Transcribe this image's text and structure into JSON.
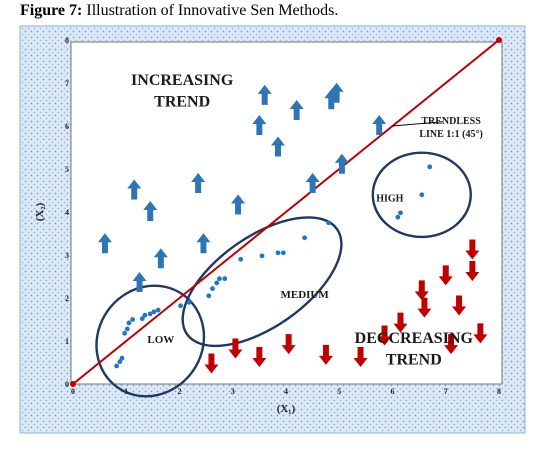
{
  "caption": {
    "label": "Figure 7:",
    "text": " Illustration of Innovative Sen Methods."
  },
  "chart_data": {
    "type": "scatter",
    "xlabel": "(X₁)",
    "ylabel": "(X₂)",
    "xlim": [
      0,
      8
    ],
    "ylim": [
      0,
      8
    ],
    "xticks": [
      "0",
      "1",
      "2",
      "3",
      "4",
      "5",
      "6",
      "7",
      "8"
    ],
    "yticks": [
      "0",
      "1",
      "2",
      "3",
      "4",
      "5",
      "6",
      "7",
      "8"
    ],
    "trend_line": {
      "label_line1": "TRENDLESS",
      "label_line2": "LINE 1:1 (45°)",
      "from": [
        0,
        0
      ],
      "to": [
        8,
        8
      ]
    },
    "points": [
      [
        0.82,
        0.42
      ],
      [
        0.88,
        0.52
      ],
      [
        0.92,
        0.6
      ],
      [
        0.97,
        1.18
      ],
      [
        1.02,
        1.28
      ],
      [
        1.05,
        1.42
      ],
      [
        1.12,
        1.5
      ],
      [
        1.3,
        1.52
      ],
      [
        1.35,
        1.6
      ],
      [
        1.45,
        1.63
      ],
      [
        1.52,
        1.68
      ],
      [
        1.6,
        1.72
      ],
      [
        2.02,
        1.82
      ],
      [
        2.18,
        1.9
      ],
      [
        2.55,
        2.05
      ],
      [
        2.62,
        2.22
      ],
      [
        2.7,
        2.35
      ],
      [
        2.75,
        2.45
      ],
      [
        2.85,
        2.45
      ],
      [
        3.15,
        2.9
      ],
      [
        3.55,
        2.98
      ],
      [
        3.85,
        3.05
      ],
      [
        3.95,
        3.05
      ],
      [
        4.35,
        3.4
      ],
      [
        4.8,
        3.75
      ],
      [
        6.1,
        3.88
      ],
      [
        6.15,
        3.98
      ],
      [
        6.55,
        4.4
      ],
      [
        6.7,
        5.05
      ]
    ],
    "regions": [
      {
        "name": "INCREASING TREND",
        "line1": "INCREASING",
        "line2": "TREND"
      },
      {
        "name": "DECCREASING TREND",
        "line1": "DECCREASING",
        "line2": "TREND"
      }
    ],
    "clusters": [
      "LOW",
      "MEDIUM",
      "HIGH"
    ],
    "up_arrows": [
      [
        1.15,
        4.5
      ],
      [
        1.45,
        4.0
      ],
      [
        2.35,
        4.65
      ],
      [
        3.1,
        4.15
      ],
      [
        3.85,
        5.5
      ],
      [
        4.5,
        4.65
      ],
      [
        4.85,
        6.6
      ],
      [
        5.05,
        5.1
      ],
      [
        5.75,
        6.0
      ],
      [
        3.5,
        6.0
      ],
      [
        1.25,
        2.35
      ],
      [
        1.65,
        2.9
      ],
      [
        0.6,
        3.25
      ],
      [
        2.45,
        3.25
      ],
      [
        3.6,
        6.7
      ],
      [
        4.2,
        6.35
      ],
      [
        4.95,
        6.75
      ]
    ],
    "down_arrows": [
      [
        7.5,
        3.15
      ],
      [
        7.5,
        2.65
      ],
      [
        7.0,
        2.55
      ],
      [
        6.55,
        2.2
      ],
      [
        5.85,
        1.15
      ],
      [
        6.6,
        1.8
      ],
      [
        7.25,
        1.85
      ],
      [
        7.65,
        1.2
      ],
      [
        7.1,
        0.95
      ],
      [
        6.15,
        1.45
      ],
      [
        5.4,
        0.65
      ],
      [
        4.75,
        0.7
      ],
      [
        4.05,
        0.95
      ],
      [
        3.5,
        0.65
      ],
      [
        3.05,
        0.85
      ],
      [
        2.6,
        0.5
      ]
    ],
    "colors": {
      "background": "#dde9f6",
      "trend_line": "#c00000",
      "points": "#1f77c4",
      "up_arrow": "#2e75b6",
      "down_arrow": "#c00000",
      "ellipse": "#1f3864"
    }
  }
}
